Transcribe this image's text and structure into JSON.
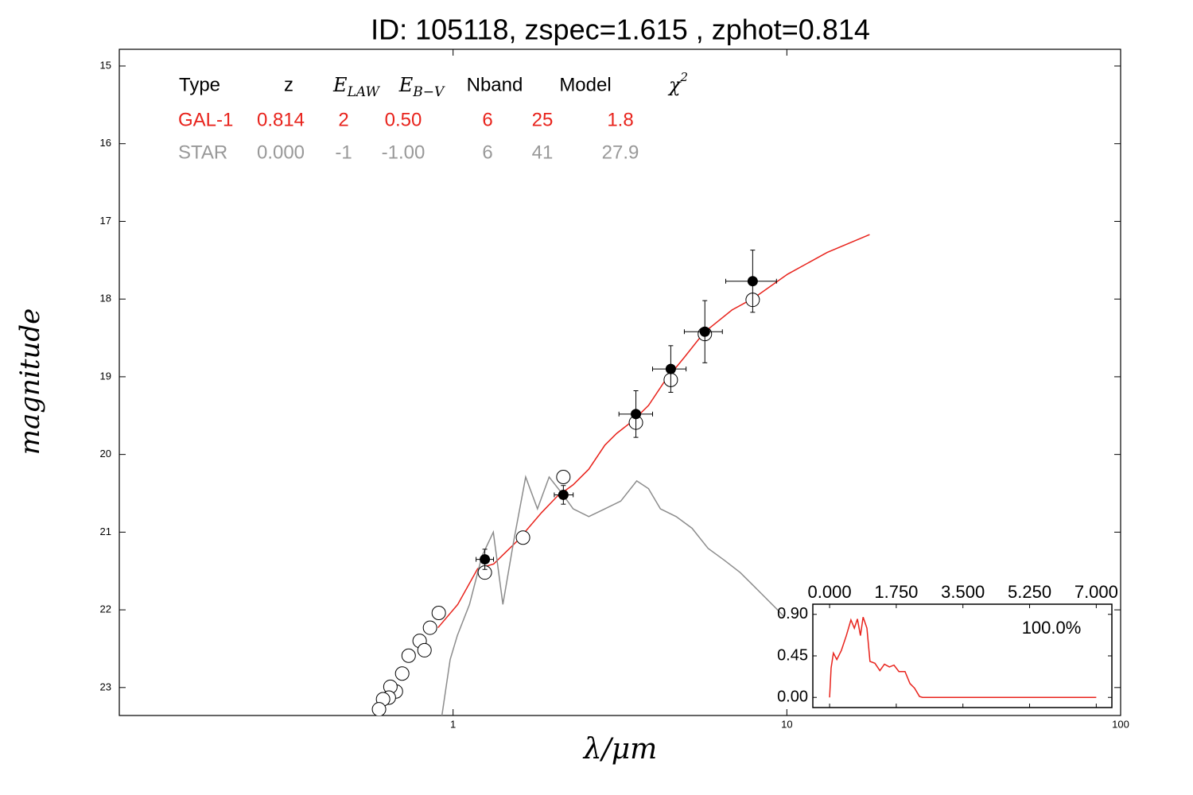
{
  "chart_data": [
    {
      "type": "line",
      "title": "ID:  105118, zspec=1.615 , zphot=0.814",
      "xlabel": "λ/μm",
      "ylabel": "magnitude",
      "xscale": "log",
      "xlim": [
        0.1,
        100
      ],
      "xticks": [
        1,
        10,
        100
      ],
      "ylim": [
        23.36,
        14.785
      ],
      "yticks": [
        15,
        16,
        17,
        18,
        19,
        20,
        21,
        22,
        23
      ],
      "series": [
        {
          "mark": "line",
          "color": "#e8231c",
          "x": [
            0.901,
            1.033,
            1.185,
            1.323,
            1.56,
            1.84,
            2.05,
            2.29,
            2.55,
            2.85,
            3.09,
            3.45,
            3.85,
            4.3,
            4.93,
            5.65,
            6.85,
            7.94,
            10.05,
            13.2,
            17.7
          ],
          "values": [
            22.23,
            21.93,
            21.47,
            21.41,
            21.11,
            20.75,
            20.54,
            20.39,
            20.19,
            19.88,
            19.73,
            19.57,
            19.37,
            19.06,
            18.75,
            18.43,
            18.14,
            17.99,
            17.68,
            17.4,
            17.17
          ]
        },
        {
          "mark": "line",
          "color": "#8c8c8c",
          "x": [
            0.926,
            0.98,
            1.03,
            1.12,
            1.22,
            1.32,
            1.41,
            1.52,
            1.65,
            1.79,
            1.94,
            2.11,
            2.29,
            2.55,
            2.85,
            3.18,
            3.55,
            3.85,
            4.18,
            4.66,
            5.2,
            5.81,
            6.49,
            7.25,
            7.86,
            8.52,
            9.28,
            9.77
          ],
          "values": [
            23.36,
            22.64,
            22.33,
            21.93,
            21.31,
            21.0,
            21.93,
            21.11,
            20.29,
            20.7,
            20.29,
            20.49,
            20.7,
            20.8,
            20.7,
            20.6,
            20.34,
            20.44,
            20.7,
            20.8,
            20.95,
            21.21,
            21.36,
            21.52,
            21.67,
            21.82,
            21.98,
            22.08
          ]
        },
        {
          "mark": "open-circle",
          "color": "#000000",
          "x": [
            1.245,
            2.14,
            1.62,
            3.53,
            4.49,
            5.68,
            7.9,
            0.906,
            0.853,
            0.794,
            0.821,
            0.736,
            0.704,
            0.674,
            0.649,
            0.642,
            0.617,
            0.6
          ],
          "values": [
            21.52,
            20.29,
            21.07,
            19.59,
            19.04,
            18.45,
            18.01,
            22.04,
            22.23,
            22.4,
            22.52,
            22.59,
            22.82,
            23.05,
            22.99,
            23.13,
            23.15,
            23.28
          ]
        },
        {
          "mark": "filled-circle",
          "color": "#000000",
          "x": [
            1.245,
            2.14,
            3.53,
            4.49,
            5.68,
            7.9
          ],
          "values": [
            21.35,
            20.52,
            19.48,
            18.9,
            18.42,
            17.77
          ],
          "yerr": [
            0.13,
            0.12,
            0.3,
            0.3,
            0.4,
            0.4
          ],
          "xlo": [
            1.172,
            2.01,
            3.14,
            3.96,
            4.93,
            6.56
          ],
          "xhi": [
            1.322,
            2.29,
            3.96,
            4.99,
            6.41,
            9.31
          ]
        }
      ]
    },
    {
      "type": "line",
      "color": "#e8231c",
      "annotation": "100.0%",
      "xlim": [
        -0.44,
        7.41
      ],
      "xticks": [
        {
          "value": 0,
          "label": "0.000"
        },
        {
          "value": 1.75,
          "label": "1.750"
        },
        {
          "value": 3.5,
          "label": "3.500"
        },
        {
          "value": 5.25,
          "label": "5.250"
        },
        {
          "value": 7,
          "label": "7.000"
        }
      ],
      "ylim": [
        -0.11,
        1.01
      ],
      "yticks": [
        {
          "value": 0.9,
          "label": "0.90"
        },
        {
          "value": 0.45,
          "label": "0.45"
        },
        {
          "value": 0,
          "label": "0.00"
        }
      ],
      "x": [
        0,
        0.04,
        0.1,
        0.19,
        0.31,
        0.44,
        0.56,
        0.65,
        0.73,
        0.81,
        0.88,
        0.98,
        1.06,
        1.19,
        1.32,
        1.44,
        1.57,
        1.69,
        1.82,
        1.98,
        2.11,
        2.23,
        2.36,
        2.44,
        7.0
      ],
      "values": [
        0,
        0.32,
        0.48,
        0.41,
        0.51,
        0.67,
        0.84,
        0.75,
        0.85,
        0.67,
        0.87,
        0.75,
        0.39,
        0.37,
        0.29,
        0.36,
        0.33,
        0.35,
        0.28,
        0.28,
        0.15,
        0.1,
        0.01,
        0,
        0
      ]
    }
  ],
  "table": {
    "header": [
      "Type",
      "z",
      {
        "base": "E",
        "sub": "LAW"
      },
      {
        "base": "E",
        "sub": "B−V"
      },
      "Nband",
      "Model",
      {
        "base": "χ",
        "sup": "2"
      }
    ],
    "rows": [
      {
        "color": "#e8231c",
        "cells": [
          "GAL-1",
          "0.814",
          "2",
          "0.50",
          "6",
          "25",
          "1.8"
        ]
      },
      {
        "color": "#999999",
        "cells": [
          "STAR",
          "0.000",
          "-1",
          "-1.00",
          "6",
          "41",
          "27.9"
        ]
      }
    ]
  }
}
